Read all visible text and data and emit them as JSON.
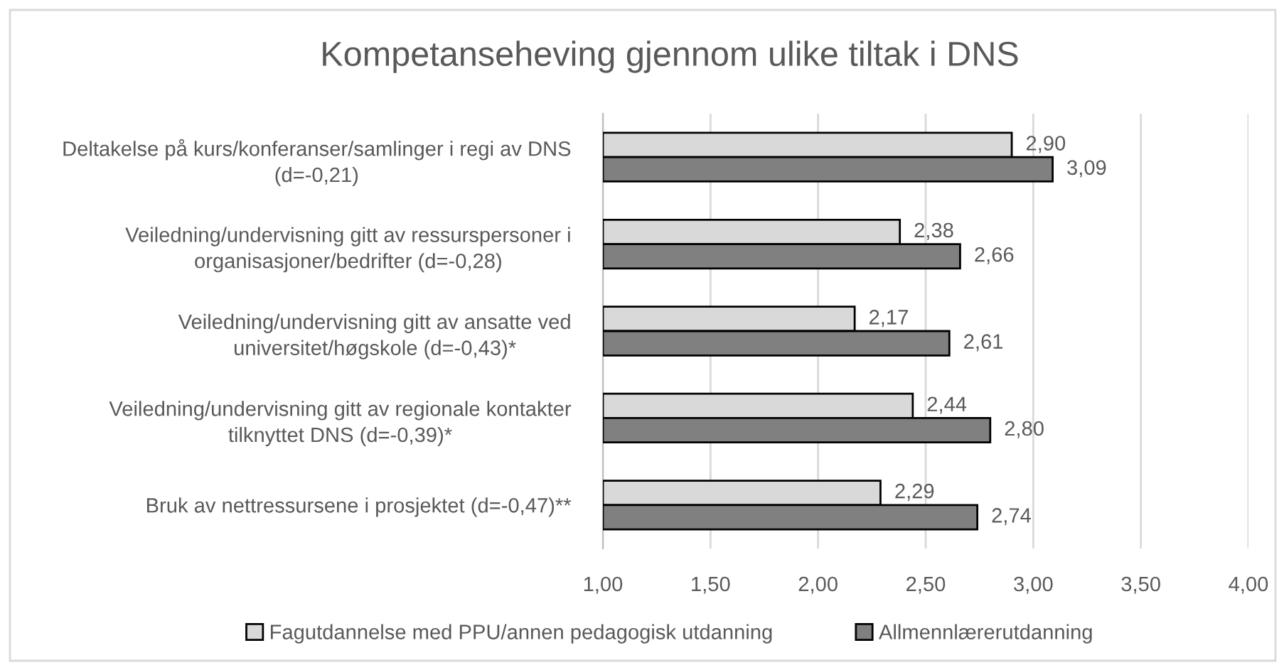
{
  "chart_data": {
    "type": "bar",
    "orientation": "horizontal",
    "title": "Kompetanseheving gjennom ulike tiltak i DNS",
    "categories": [
      "Deltakelse på kurs/konferanser/samlinger i regi av DNS\n(d=-0,21)",
      "Veiledning/undervisning gitt av ressurspersoner i\norganisasjoner/bedrifter (d=-0,28)",
      "Veiledning/undervisning gitt av ansatte ved\nuniversitet/høgskole (d=-0,43)*",
      "Veiledning/undervisning gitt av regionale kontakter\ntilknyttet DNS (d=-0,39)*",
      "Bruk av nettressursene i prosjektet (d=-0,47)**"
    ],
    "series": [
      {
        "name": "Fagutdannelse med PPU/annen pedagogisk utdanning",
        "color": "#d9d9d9",
        "values": [
          2.9,
          2.38,
          2.17,
          2.44,
          2.29
        ],
        "value_labels": [
          "2,90",
          "2,38",
          "2,17",
          "2,44",
          "2,29"
        ]
      },
      {
        "name": "Allmennlærerutdanning",
        "color": "#808080",
        "values": [
          3.09,
          2.66,
          2.61,
          2.8,
          2.74
        ],
        "value_labels": [
          "3,09",
          "2,66",
          "2,61",
          "2,80",
          "2,74"
        ]
      }
    ],
    "xlim": [
      1,
      4
    ],
    "xticks": [
      {
        "value": 1,
        "label": "1,00"
      },
      {
        "value": 1.5,
        "label": "1,50"
      },
      {
        "value": 2,
        "label": "2,00"
      },
      {
        "value": 2.5,
        "label": "2,50"
      },
      {
        "value": 3,
        "label": "3,00"
      },
      {
        "value": 3.5,
        "label": "3,50"
      },
      {
        "value": 4,
        "label": "4,00"
      }
    ],
    "grid": "x",
    "legend": "bottom"
  }
}
